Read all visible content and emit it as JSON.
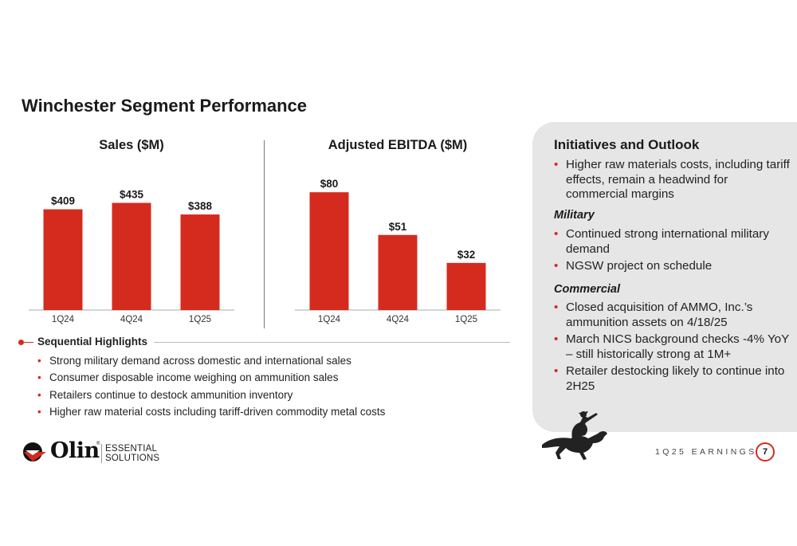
{
  "title": "Winchester Segment Performance",
  "colors": {
    "accent": "#d52b1e",
    "bar": "#d52b1e",
    "panel": "#e6e6e6"
  },
  "chart_data": [
    {
      "type": "bar",
      "title": "Sales ($M)",
      "categories": [
        "1Q24",
        "4Q24",
        "1Q25"
      ],
      "values": [
        409,
        435,
        388
      ],
      "labels": [
        "$409",
        "$435",
        "$388"
      ],
      "ylim": [
        0,
        550
      ],
      "grid": false
    },
    {
      "type": "bar",
      "title": "Adjusted EBITDA ($M)",
      "categories": [
        "1Q24",
        "4Q24",
        "1Q25"
      ],
      "values": [
        80,
        51,
        32
      ],
      "labels": [
        "$80",
        "$51",
        "$32"
      ],
      "ylim": [
        0,
        92
      ],
      "grid": false
    }
  ],
  "highlights": {
    "title": "Sequential Highlights",
    "items": [
      "Strong military demand across domestic and international sales",
      "Consumer disposable income weighing on ammunition sales",
      "Retailers continue to destock ammunition inventory",
      "Higher raw material costs including tariff-driven commodity metal costs"
    ]
  },
  "outlook": {
    "title": "Initiatives and Outlook",
    "main": [
      "Higher raw materials costs, including tariff effects, remain a headwind for commercial margins"
    ],
    "military_label": "Military",
    "military": [
      "Continued strong international military demand",
      "NGSW project on schedule"
    ],
    "commercial_label": "Commercial",
    "commercial": [
      "Closed acquisition of AMMO, Inc.’s ammunition assets on 4/18/25",
      "March NICS background checks -4% YoY – still historically strong at 1M+",
      "Retailer destocking likely to continue into 2H25"
    ]
  },
  "logo": {
    "wordmark": "Olin",
    "reg": "®",
    "tagline_1": "ESSENTIAL",
    "tagline_2": "SOLUTIONS"
  },
  "footer": {
    "label": "1Q25 EARNINGS",
    "page": "7"
  }
}
